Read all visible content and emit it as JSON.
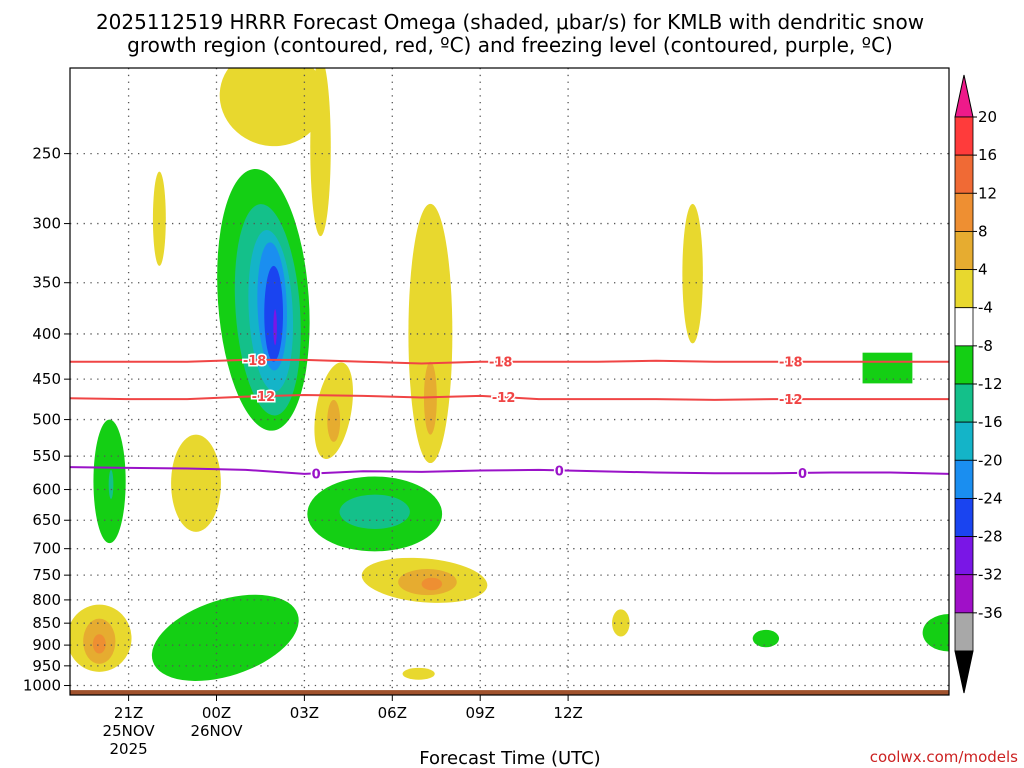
{
  "chart_data": {
    "type": "contour",
    "title_line1": "2025112519 HRRR Forecast Omega (shaded, μbar/s) for KMLB with dendritic snow",
    "title_line2": "growth region (contoured, red, ºC) and freezing level (contoured, purple, ºC)",
    "xlabel": "Forecast Time (UTC)",
    "credit": "coolwx.com/models",
    "x_axis": {
      "units": "hours since 2025-11-25 19Z",
      "range": [
        0,
        30
      ],
      "ticks": [
        {
          "x": 2,
          "label": "21Z",
          "sub1": "25NOV",
          "sub2": "2025"
        },
        {
          "x": 5,
          "label": "00Z",
          "sub1": "26NOV",
          "sub2": ""
        },
        {
          "x": 8,
          "label": "03Z",
          "sub1": "",
          "sub2": ""
        },
        {
          "x": 11,
          "label": "06Z",
          "sub1": "",
          "sub2": ""
        },
        {
          "x": 14,
          "label": "09Z",
          "sub1": "",
          "sub2": ""
        },
        {
          "x": 17,
          "label": "12Z",
          "sub1": "",
          "sub2": ""
        }
      ]
    },
    "y_axis": {
      "units": "hPa",
      "scale": "log",
      "range": [
        1025,
        200
      ],
      "ticks": [
        {
          "p": 250,
          "label": "250"
        },
        {
          "p": 300,
          "label": "300"
        },
        {
          "p": 350,
          "label": "350"
        },
        {
          "p": 400,
          "label": "400"
        },
        {
          "p": 450,
          "label": "450"
        },
        {
          "p": 500,
          "label": "500"
        },
        {
          "p": 550,
          "label": "550"
        },
        {
          "p": 600,
          "label": "600"
        },
        {
          "p": 650,
          "label": "650"
        },
        {
          "p": 700,
          "label": "700"
        },
        {
          "p": 750,
          "label": "750"
        },
        {
          "p": 800,
          "label": "800"
        },
        {
          "p": 850,
          "label": "850"
        },
        {
          "p": 900,
          "label": "900"
        },
        {
          "p": 950,
          "label": "950"
        },
        {
          "p": 1000,
          "label": "1000"
        }
      ]
    },
    "colorbar": {
      "levels": [
        {
          "label": "20",
          "color": "#ff3b3b"
        },
        {
          "label": "16",
          "color": "#f06a35"
        },
        {
          "label": "12",
          "color": "#ee8f32"
        },
        {
          "label": "8",
          "color": "#e6ac30"
        },
        {
          "label": "4",
          "color": "#e8d82e"
        },
        {
          "label": "-4",
          "color": "#ffffff"
        },
        {
          "label": "-8",
          "color": "#14cf14"
        },
        {
          "label": "-12",
          "color": "#14c08a"
        },
        {
          "label": "-16",
          "color": "#14b4c8"
        },
        {
          "label": "-20",
          "color": "#1a8ef0"
        },
        {
          "label": "-24",
          "color": "#1a44f0"
        },
        {
          "label": "-28",
          "color": "#7a16e6"
        },
        {
          "label": "-32",
          "color": "#a010c8"
        },
        {
          "label": "-36",
          "color": "#a8a8a8"
        }
      ],
      "top_arrow_color": "#ee1a8a",
      "bottom_arrow_color": "#000000"
    },
    "isotherms": [
      {
        "name": "dgz-top",
        "label": "-18",
        "color": "#f04545",
        "points": [
          [
            0,
            430
          ],
          [
            2,
            430
          ],
          [
            4,
            430
          ],
          [
            6,
            428
          ],
          [
            8,
            428
          ],
          [
            10,
            430
          ],
          [
            12,
            432
          ],
          [
            14,
            430
          ],
          [
            16,
            430
          ],
          [
            18,
            430
          ],
          [
            20,
            429
          ],
          [
            22,
            430
          ],
          [
            24,
            430
          ],
          [
            26,
            430
          ],
          [
            28,
            430
          ],
          [
            30,
            430
          ]
        ],
        "label_x": [
          6.3,
          14.7,
          24.6
        ]
      },
      {
        "name": "dgz-bottom",
        "label": "-12",
        "color": "#f04545",
        "points": [
          [
            0,
            473
          ],
          [
            2,
            474
          ],
          [
            4,
            474
          ],
          [
            6,
            471
          ],
          [
            8,
            469
          ],
          [
            10,
            470
          ],
          [
            12,
            472
          ],
          [
            14,
            470
          ],
          [
            16,
            474
          ],
          [
            18,
            474
          ],
          [
            20,
            474
          ],
          [
            22,
            475
          ],
          [
            24,
            474
          ],
          [
            26,
            474
          ],
          [
            28,
            474
          ],
          [
            30,
            474
          ]
        ],
        "label_x": [
          6.6,
          14.8,
          24.6
        ]
      },
      {
        "name": "freezing-level",
        "label": "0",
        "color": "#9a12c8",
        "points": [
          [
            0,
            566
          ],
          [
            2,
            567
          ],
          [
            4,
            568
          ],
          [
            6,
            570
          ],
          [
            8,
            576
          ],
          [
            10,
            572
          ],
          [
            12,
            573
          ],
          [
            14,
            571
          ],
          [
            16,
            570
          ],
          [
            18,
            572
          ],
          [
            20,
            574
          ],
          [
            22,
            575
          ],
          [
            24,
            575
          ],
          [
            26,
            574
          ],
          [
            28,
            574
          ],
          [
            30,
            576
          ]
        ],
        "label_x": [
          8.4,
          16.7,
          25.0
        ]
      }
    ],
    "omega_regions": [
      {
        "name": "upward-motion-core",
        "level": "-8",
        "color": "#14cf14",
        "cx": 6.6,
        "cp_top": 260,
        "cp_bot": 515,
        "rx": 1.55,
        "rotate_deg": -4,
        "shape": "ellipse"
      },
      {
        "name": "upward-motion-core",
        "level": "-12",
        "color": "#14c08a",
        "cx": 6.75,
        "cp_top": 285,
        "cp_bot": 495,
        "rx": 1.1,
        "rotate_deg": -4,
        "shape": "ellipse"
      },
      {
        "name": "upward-motion-core",
        "level": "-16",
        "color": "#14b4c8",
        "cx": 6.85,
        "cp_top": 305,
        "cp_bot": 465,
        "rx": 0.75,
        "rotate_deg": -3,
        "shape": "ellipse"
      },
      {
        "name": "upward-motion-core",
        "level": "-20",
        "color": "#1a8ef0",
        "cx": 6.9,
        "cp_top": 315,
        "cp_bot": 440,
        "rx": 0.5,
        "rotate_deg": -2,
        "shape": "ellipse"
      },
      {
        "name": "upward-motion-core",
        "level": "-24",
        "color": "#1a44f0",
        "cx": 6.95,
        "cp_top": 335,
        "cp_bot": 430,
        "rx": 0.32,
        "rotate_deg": 0,
        "shape": "ellipse"
      },
      {
        "name": "upward-motion-core",
        "level": "-28",
        "color": "#7a16e6",
        "cx": 7.0,
        "cp_top": 375,
        "cp_bot": 412,
        "rx": 0.06,
        "rotate_deg": 0,
        "shape": "ellipse"
      },
      {
        "name": "upward-motion-low",
        "level": "-8",
        "color": "#14cf14",
        "cx": 1.35,
        "cp_top": 500,
        "cp_bot": 690,
        "rx": 0.55,
        "rotate_deg": 0,
        "shape": "ellipse"
      },
      {
        "name": "upward-motion-low",
        "level": "-12",
        "color": "#14c08a",
        "cx": 1.4,
        "cp_top": 570,
        "cp_bot": 615,
        "rx": 0.08,
        "rotate_deg": 0,
        "shape": "ellipse"
      },
      {
        "name": "upward-motion-mid",
        "level": "-8",
        "color": "#14cf14",
        "cx": 10.4,
        "cp_top": 580,
        "cp_bot": 705,
        "rx": 2.3,
        "rotate_deg": 0,
        "shape": "ellipse"
      },
      {
        "name": "upward-motion-mid",
        "level": "-12",
        "color": "#14c08a",
        "cx": 10.4,
        "cp_top": 608,
        "cp_bot": 665,
        "rx": 1.2,
        "rotate_deg": 0,
        "shape": "ellipse"
      },
      {
        "name": "upward-motion-boundary",
        "level": "-8",
        "color": "#14cf14",
        "cx": 5.3,
        "cp_top": 800,
        "cp_bot": 975,
        "rx": 2.6,
        "rotate_deg": -18,
        "shape": "ellipse"
      },
      {
        "name": "upward-motion-small",
        "level": "-8",
        "color": "#14cf14",
        "cx": 23.75,
        "cp_top": 865,
        "cp_bot": 905,
        "rx": 0.45,
        "rotate_deg": 0,
        "shape": "ellipse"
      },
      {
        "name": "upward-motion-edge",
        "level": "-8",
        "color": "#14cf14",
        "cx": 30.0,
        "cp_top": 830,
        "cp_bot": 915,
        "rx": 0.9,
        "rotate_deg": 0,
        "shape": "ellipse"
      },
      {
        "name": "upward-motion-box",
        "level": "-8",
        "color": "#14cf14",
        "cx": 27.9,
        "cp_top": 420,
        "cp_bot": 455,
        "rx": 0.85,
        "rotate_deg": 0,
        "shape": "rect"
      },
      {
        "name": "sinking-motion",
        "level": "4",
        "color": "#e8d82e",
        "cx": 6.9,
        "cp_top": 190,
        "cp_bot": 245,
        "rx": 1.8,
        "rotate_deg": 15,
        "shape": "ellipse"
      },
      {
        "name": "sinking-motion",
        "level": "4",
        "color": "#e8d82e",
        "cx": 8.55,
        "cp_top": 195,
        "cp_bot": 310,
        "rx": 0.35,
        "rotate_deg": 0,
        "shape": "ellipse"
      },
      {
        "name": "sinking-motion",
        "level": "4",
        "color": "#e8d82e",
        "cx": 3.05,
        "cp_top": 262,
        "cp_bot": 335,
        "rx": 0.22,
        "rotate_deg": 0,
        "shape": "ellipse"
      },
      {
        "name": "sinking-motion",
        "level": "4",
        "color": "#e8d82e",
        "cx": 12.3,
        "cp_top": 285,
        "cp_bot": 560,
        "rx": 0.75,
        "rotate_deg": 0,
        "shape": "ellipse"
      },
      {
        "name": "sinking-motion",
        "level": "8",
        "color": "#e6ac30",
        "cx": 12.3,
        "cp_top": 430,
        "cp_bot": 520,
        "rx": 0.22,
        "rotate_deg": 0,
        "shape": "ellipse"
      },
      {
        "name": "sinking-motion",
        "level": "4",
        "color": "#e8d82e",
        "cx": 9.0,
        "cp_top": 430,
        "cp_bot": 555,
        "rx": 0.6,
        "rotate_deg": 10,
        "shape": "ellipse"
      },
      {
        "name": "sinking-motion",
        "level": "8",
        "color": "#e6ac30",
        "cx": 9.0,
        "cp_top": 475,
        "cp_bot": 530,
        "rx": 0.22,
        "rotate_deg": 0,
        "shape": "ellipse"
      },
      {
        "name": "sinking-motion",
        "level": "4",
        "color": "#e8d82e",
        "cx": 4.3,
        "cp_top": 520,
        "cp_bot": 670,
        "rx": 0.85,
        "rotate_deg": 0,
        "shape": "ellipse"
      },
      {
        "name": "sinking-motion",
        "level": "4",
        "color": "#e8d82e",
        "cx": 21.25,
        "cp_top": 285,
        "cp_bot": 410,
        "rx": 0.35,
        "rotate_deg": 0,
        "shape": "ellipse"
      },
      {
        "name": "sinking-motion",
        "level": "4",
        "color": "#e8d82e",
        "cx": 12.1,
        "cp_top": 718,
        "cp_bot": 805,
        "rx": 2.15,
        "rotate_deg": 5,
        "shape": "ellipse"
      },
      {
        "name": "sinking-motion",
        "level": "8",
        "color": "#e6ac30",
        "cx": 12.2,
        "cp_top": 738,
        "cp_bot": 790,
        "rx": 1.0,
        "rotate_deg": 0,
        "shape": "ellipse"
      },
      {
        "name": "sinking-motion",
        "level": "12",
        "color": "#ee8f32",
        "cx": 12.35,
        "cp_top": 755,
        "cp_bot": 780,
        "rx": 0.35,
        "rotate_deg": 0,
        "shape": "ellipse"
      },
      {
        "name": "sinking-motion",
        "level": "4",
        "color": "#e8d82e",
        "cx": 1.0,
        "cp_top": 810,
        "cp_bot": 965,
        "rx": 1.1,
        "rotate_deg": 0,
        "shape": "ellipse"
      },
      {
        "name": "sinking-motion",
        "level": "8",
        "color": "#e6ac30",
        "cx": 1.0,
        "cp_top": 840,
        "cp_bot": 945,
        "rx": 0.55,
        "rotate_deg": 0,
        "shape": "ellipse"
      },
      {
        "name": "sinking-motion",
        "level": "12",
        "color": "#ee8f32",
        "cx": 1.0,
        "cp_top": 875,
        "cp_bot": 920,
        "rx": 0.22,
        "rotate_deg": 0,
        "shape": "ellipse"
      },
      {
        "name": "sinking-motion",
        "level": "4",
        "color": "#e8d82e",
        "cx": 18.8,
        "cp_top": 820,
        "cp_bot": 880,
        "rx": 0.3,
        "rotate_deg": 0,
        "shape": "ellipse"
      },
      {
        "name": "sinking-motion",
        "level": "4",
        "color": "#e8d82e",
        "cx": 11.9,
        "cp_top": 955,
        "cp_bot": 985,
        "rx": 0.55,
        "rotate_deg": 0,
        "shape": "ellipse"
      }
    ],
    "ground": {
      "color": "#a0522d",
      "p_top": 1012
    }
  }
}
